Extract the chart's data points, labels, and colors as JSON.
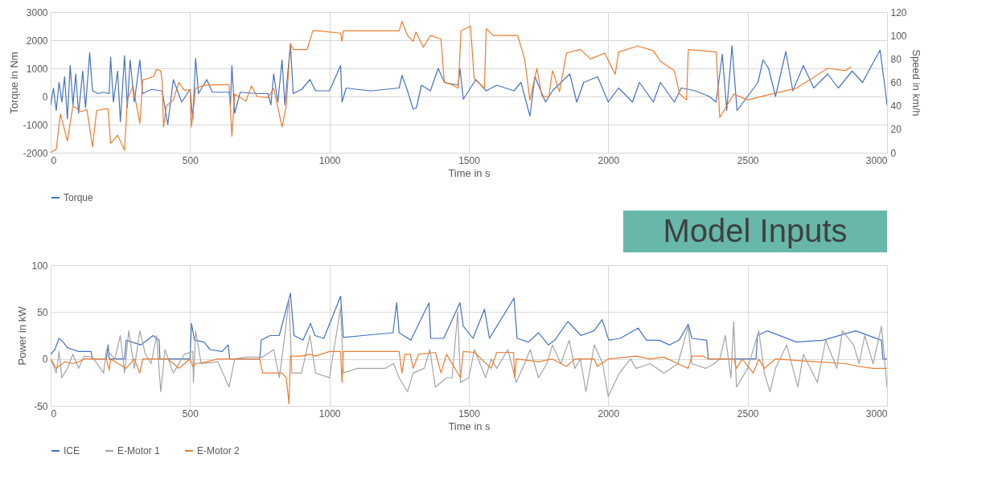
{
  "chart_data": [
    {
      "type": "line",
      "xlabel": "Time in s",
      "ylabel": "Torque in Nm",
      "y2label": "Speed in km/h",
      "xlim": [
        0,
        3000
      ],
      "xticks": [
        0,
        500,
        1000,
        1500,
        2000,
        2500,
        3000
      ],
      "ylim": [
        -2000,
        3000
      ],
      "yticks": [
        -2000,
        -1000,
        0,
        1000,
        2000,
        3000
      ],
      "y2lim": [
        0,
        120
      ],
      "y2ticks": [
        0,
        20,
        40,
        60,
        80,
        100,
        120
      ],
      "grid": true,
      "legend": "bottom",
      "annotations": [
        "Model Inputs"
      ],
      "series": [
        {
          "name": "Torque",
          "color": "#4472c4",
          "x": [
            0,
            10,
            20,
            30,
            40,
            50,
            60,
            70,
            80,
            90,
            100,
            115,
            125,
            140,
            150,
            170,
            190,
            210,
            215,
            225,
            240,
            250,
            265,
            275,
            285,
            300,
            320,
            330,
            360,
            400,
            420,
            440,
            470,
            500,
            510,
            520,
            530,
            560,
            580,
            600,
            640,
            645,
            650,
            660,
            680,
            740,
            780,
            790,
            800,
            815,
            830,
            840,
            860,
            870,
            900,
            930,
            950,
            1000,
            1040,
            1045,
            1060,
            1100,
            1150,
            1250,
            1260,
            1280,
            1300,
            1312,
            1330,
            1362,
            1390,
            1412,
            1462,
            1468,
            1480,
            1525,
            1562,
            1600,
            1662,
            1687,
            1719,
            1737,
            1775,
            1800,
            1862,
            1887,
            1912,
            1962,
            2000,
            2037,
            2087,
            2112,
            2162,
            2187,
            2237,
            2262,
            2312,
            2362,
            2387,
            2409,
            2425,
            2444,
            2462,
            2537,
            2555,
            2575,
            2600,
            2637,
            2662,
            2700,
            2737,
            2787,
            2825,
            2875,
            2912,
            2975,
            2994,
            3000
          ],
          "values": [
            -300,
            300,
            -500,
            500,
            -200,
            700,
            -800,
            1100,
            -300,
            800,
            -600,
            900,
            -400,
            1550,
            200,
            100,
            150,
            100,
            1400,
            -200,
            900,
            -900,
            1450,
            -400,
            1300,
            -200,
            1300,
            100,
            250,
            200,
            -1000,
            600,
            -200,
            250,
            -800,
            1350,
            100,
            600,
            150,
            150,
            150,
            -300,
            1100,
            -600,
            150,
            100,
            100,
            -300,
            800,
            -200,
            1300,
            -300,
            1850,
            100,
            250,
            600,
            200,
            200,
            1100,
            -200,
            300,
            250,
            200,
            300,
            750,
            200,
            -450,
            -400,
            400,
            200,
            1000,
            500,
            400,
            1000,
            -100,
            600,
            200,
            400,
            200,
            500,
            -700,
            700,
            -200,
            200,
            800,
            -200,
            500,
            700,
            -200,
            300,
            -200,
            500,
            -200,
            500,
            -200,
            300,
            200,
            0,
            -200,
            1500,
            -500,
            1800,
            -500,
            500,
            1300,
            1000,
            0,
            1600,
            200,
            1100,
            300,
            800,
            300,
            900,
            500,
            1650,
            200,
            -300
          ]
        },
        {
          "color": "#ed7d31",
          "axis": "y2",
          "x": [
            0,
            20,
            35,
            60,
            80,
            110,
            130,
            150,
            165,
            200,
            206,
            215,
            240,
            265,
            275,
            295,
            320,
            330,
            370,
            380,
            395,
            400,
            405,
            415,
            440,
            460,
            480,
            500,
            505,
            520,
            550,
            600,
            640,
            650,
            660,
            700,
            720,
            740,
            780,
            800,
            830,
            845,
            860,
            870,
            920,
            940,
            960,
            1040,
            1045,
            1050,
            1250,
            1260,
            1280,
            1300,
            1310,
            1337,
            1362,
            1400,
            1412,
            1440,
            1462,
            1472,
            1506,
            1519,
            1556,
            1562,
            1587,
            1675,
            1700,
            1719,
            1744,
            1762,
            1787,
            1800,
            1825,
            1850,
            1900,
            1937,
            1987,
            2025,
            2037,
            2106,
            2162,
            2187,
            2237,
            2256,
            2281,
            2287,
            2387,
            2400,
            2450,
            2500,
            2584,
            2675,
            2787,
            2850,
            2870
          ],
          "values": [
            0,
            3,
            33,
            10,
            40,
            35,
            37,
            5,
            36,
            37.5,
            37.5,
            8,
            15,
            2,
            45,
            57,
            25,
            62,
            65,
            71,
            70,
            60,
            22,
            40,
            45,
            60,
            53,
            54,
            22,
            55,
            57.5,
            58,
            58,
            14,
            50,
            44,
            57,
            48,
            47,
            55,
            22,
            40,
            93,
            88,
            88,
            104,
            104,
            102,
            95,
            104,
            104,
            112,
            100,
            95,
            103,
            90,
            100,
            97,
            60,
            58,
            55,
            104,
            108,
            63,
            55,
            106,
            100,
            100,
            80,
            45,
            72,
            48,
            48,
            70,
            52,
            85,
            88,
            80,
            85,
            67,
            86,
            91,
            87,
            78,
            70,
            50,
            45,
            88,
            86,
            30,
            50,
            45,
            50,
            55,
            72,
            70,
            73
          ]
        }
      ]
    },
    {
      "type": "line",
      "xlabel": "Time in s",
      "ylabel": "Power in kW",
      "xlim": [
        0,
        3000
      ],
      "xticks": [
        0,
        500,
        1000,
        1500,
        2000,
        2500,
        3000
      ],
      "ylim": [
        -50,
        100
      ],
      "yticks": [
        -50,
        0,
        50,
        100
      ],
      "grid": true,
      "legend": "bottom",
      "series": [
        {
          "name": "ICE",
          "color": "#4472c4",
          "x": [
            0,
            15,
            30,
            45,
            60,
            80,
            100,
            130,
            145,
            150,
            200,
            206,
            210,
            265,
            271,
            323,
            368,
            389,
            392,
            500,
            505,
            516,
            550,
            572,
            615,
            637,
            642,
            750,
            755,
            787,
            820,
            860,
            873,
            905,
            932,
            948,
            980,
            1040,
            1050,
            1120,
            1228,
            1241,
            1250,
            1292,
            1357,
            1363,
            1410,
            1468,
            1480,
            1515,
            1556,
            1574,
            1662,
            1673,
            1714,
            1750,
            1785,
            1808,
            1855,
            1902,
            1949,
            1978,
            2002,
            2043,
            2107,
            2137,
            2183,
            2219,
            2254,
            2287,
            2300,
            2353,
            2359,
            2530,
            2535,
            2570,
            2676,
            2770,
            2887,
            2980,
            2985,
            3000
          ],
          "values": [
            5,
            10,
            22,
            18,
            12,
            10,
            8,
            8,
            8,
            0,
            0,
            15,
            0,
            0,
            20,
            15,
            25,
            20,
            0,
            0,
            38,
            20,
            18,
            10,
            8,
            15,
            0,
            0,
            20,
            25,
            25,
            70,
            25,
            20,
            38,
            25,
            22,
            67,
            23,
            25,
            28,
            60,
            28,
            20,
            60,
            22,
            22,
            60,
            35,
            22,
            53,
            22,
            65,
            22,
            18,
            28,
            15,
            20,
            40,
            25,
            30,
            42,
            20,
            22,
            33,
            20,
            20,
            15,
            20,
            37,
            22,
            20,
            0,
            0,
            25,
            30,
            18,
            20,
            30,
            20,
            0,
            0
          ]
        },
        {
          "name": "E-Motor 1",
          "color": "#a5a5a5",
          "x": [
            0,
            20,
            30,
            40,
            60,
            80,
            100,
            120,
            150,
            190,
            200,
            230,
            250,
            265,
            280,
            300,
            320,
            340,
            360,
            380,
            395,
            410,
            440,
            480,
            510,
            512,
            520,
            540,
            600,
            640,
            660,
            700,
            760,
            800,
            820,
            840,
            855,
            865,
            900,
            930,
            950,
            1000,
            1040,
            1050,
            1100,
            1200,
            1230,
            1250,
            1280,
            1300,
            1340,
            1360,
            1380,
            1420,
            1440,
            1460,
            1470,
            1500,
            1520,
            1560,
            1580,
            1600,
            1640,
            1670,
            1700,
            1720,
            1750,
            1780,
            1800,
            1830,
            1860,
            1880,
            1900,
            1920,
            1950,
            1980,
            2000,
            2040,
            2080,
            2100,
            2150,
            2200,
            2250,
            2287,
            2300,
            2350,
            2380,
            2400,
            2420,
            2440,
            2450,
            2460,
            2500,
            2540,
            2560,
            2580,
            2600,
            2640,
            2680,
            2700,
            2750,
            2780,
            2820,
            2840,
            2880,
            2900,
            2920,
            2950,
            2980,
            3000
          ],
          "values": [
            0,
            -15,
            8,
            -20,
            -10,
            5,
            -10,
            3,
            2,
            -15,
            10,
            0,
            25,
            -15,
            30,
            -10,
            30,
            5,
            -5,
            25,
            -35,
            10,
            -15,
            5,
            8,
            -25,
            30,
            -5,
            -3,
            -30,
            0,
            2,
            2,
            10,
            -20,
            25,
            65,
            -15,
            -15,
            25,
            -15,
            -20,
            55,
            -15,
            -10,
            -10,
            -5,
            -20,
            -35,
            -15,
            -10,
            10,
            -30,
            -20,
            -20,
            50,
            -25,
            -20,
            10,
            -20,
            0,
            -10,
            10,
            -25,
            -5,
            10,
            -20,
            -5,
            15,
            -5,
            20,
            -10,
            0,
            -35,
            15,
            -5,
            -40,
            -15,
            0,
            -10,
            -5,
            -15,
            -5,
            35,
            -5,
            -10,
            -5,
            0,
            25,
            -20,
            40,
            -30,
            -10,
            30,
            -15,
            -35,
            -10,
            15,
            -30,
            5,
            -25,
            20,
            -10,
            30,
            15,
            -5,
            25,
            -5,
            35,
            -30
          ]
        },
        {
          "name": "E-Motor 2",
          "color": "#ed7d31",
          "x": [
            0,
            20,
            50,
            80,
            100,
            120,
            200,
            210,
            215,
            270,
            300,
            320,
            330,
            420,
            460,
            500,
            510,
            520,
            560,
            600,
            750,
            760,
            800,
            830,
            845,
            855,
            860,
            900,
            930,
            950,
            1000,
            1040,
            1045,
            1050,
            1250,
            1260,
            1270,
            1290,
            1300,
            1320,
            1380,
            1400,
            1420,
            1470,
            1480,
            1520,
            1580,
            1600,
            1660,
            1665,
            1670,
            1750,
            1800,
            1850,
            1880,
            1950,
            1960,
            2000,
            2100,
            2150,
            2200,
            2250,
            2287,
            2300,
            2340,
            2360,
            2450,
            2460,
            2480,
            2520,
            2540,
            2560,
            2600,
            2850,
            2900,
            2950,
            3000
          ],
          "values": [
            0,
            -10,
            -3,
            -5,
            -3,
            0,
            0,
            -12,
            0,
            -10,
            0,
            -15,
            0,
            0,
            -10,
            0,
            -8,
            -5,
            -3,
            0,
            0,
            -15,
            -15,
            -15,
            -20,
            -48,
            3,
            3,
            5,
            3,
            8,
            8,
            -25,
            8,
            8,
            -15,
            5,
            5,
            -10,
            5,
            7,
            -15,
            5,
            -20,
            8,
            7,
            -10,
            7,
            7,
            -20,
            0,
            -3,
            0,
            -8,
            0,
            0,
            -8,
            0,
            3,
            0,
            2,
            -5,
            -10,
            3,
            3,
            0,
            0,
            -10,
            0,
            -15,
            0,
            -10,
            0,
            -5,
            -8,
            -10,
            -10
          ]
        }
      ]
    }
  ]
}
